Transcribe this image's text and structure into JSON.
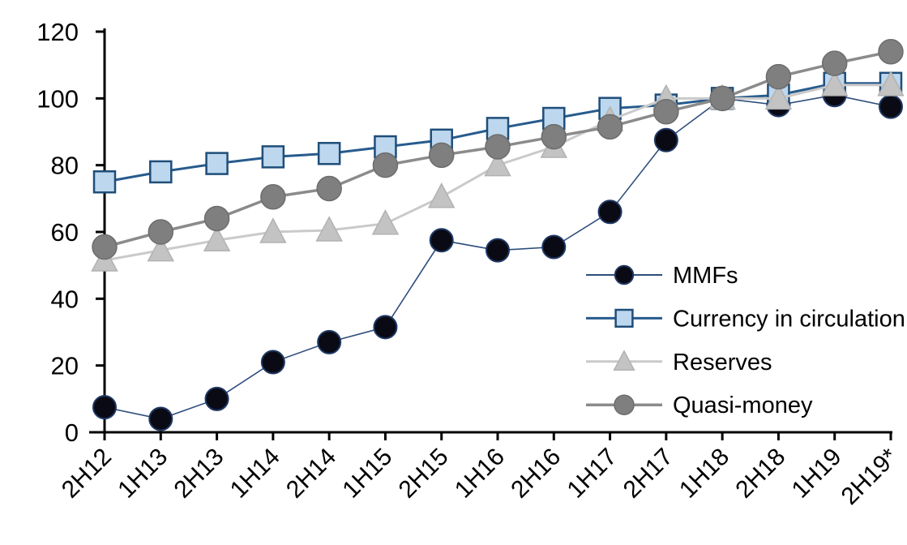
{
  "chart_data": {
    "type": "line",
    "title": "",
    "xlabel": "",
    "ylabel": "",
    "ylim": [
      0,
      120
    ],
    "yticks": [
      0,
      20,
      40,
      60,
      80,
      100,
      120
    ],
    "grid": false,
    "legend_position": "inside-right",
    "background": "#ffffff",
    "axis_color": "#000000",
    "categories": [
      "2H12",
      "1H13",
      "2H13",
      "1H14",
      "2H14",
      "1H15",
      "2H15",
      "1H16",
      "2H16",
      "1H17",
      "2H17",
      "1H18",
      "2H18",
      "1H19",
      "2H19*"
    ],
    "series": [
      {
        "name": "MMFs",
        "marker": "circle",
        "values": [
          7.5,
          4,
          10,
          21,
          27,
          31.5,
          57.5,
          54.5,
          55.5,
          66,
          87.5,
          100,
          98,
          101,
          97.5
        ],
        "line_color": "#2e4d7c",
        "line_width": 1.6,
        "marker_fill": "#0a0a14",
        "marker_stroke": "#1f3864",
        "marker_stroke_width": 2,
        "marker_size": 28
      },
      {
        "name": "Currency in circulation",
        "marker": "square",
        "values": [
          75,
          78,
          80.5,
          82.5,
          83.5,
          85.5,
          87.5,
          91,
          94,
          97,
          98,
          100,
          101,
          104.5,
          104.5
        ],
        "line_color": "#275b8d",
        "line_width": 3,
        "marker_fill": "#bdd7ee",
        "marker_stroke": "#1f4e79",
        "marker_stroke_width": 2.5,
        "marker_size": 26
      },
      {
        "name": "Reserves",
        "marker": "triangle",
        "values": [
          51.5,
          54.5,
          57.5,
          60,
          60.5,
          62.5,
          70.5,
          80,
          85.5,
          93.5,
          100,
          100,
          100,
          104,
          104
        ],
        "line_color": "#cacaca",
        "line_width": 3,
        "marker_fill": "#c3c3c3",
        "marker_stroke": "#b2b2b2",
        "marker_stroke_width": 1.5,
        "marker_size": 31
      },
      {
        "name": "Quasi-money",
        "marker": "circle",
        "values": [
          55.5,
          60,
          64,
          70.5,
          73,
          80,
          83,
          85.5,
          88.5,
          91.5,
          96,
          100,
          106.5,
          110.5,
          114
        ],
        "line_color": "#8b8b8b",
        "line_width": 3.5,
        "marker_fill": "#7f7f7f",
        "marker_stroke": "#6d6d6d",
        "marker_stroke_width": 1.5,
        "marker_size": 30
      }
    ]
  }
}
